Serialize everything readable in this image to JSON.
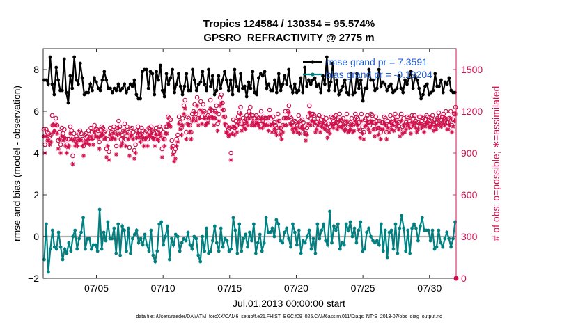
{
  "chart_data": {
    "type": "line",
    "title": "Tropics 124584 / 130354 = 95.574%",
    "subtitle": "GPSRO_REFRACTIVITY @ 2775 m",
    "xlabel": "Jul.01,2013 00:00:00 start",
    "ylabel_left": "rmse and bias (model - observation)",
    "ylabel_right": "# of obs: o=possible; ∗=assimilated",
    "footer": "data file: /Users/raeder/DAI/ATM_forcXX/CAM6_setup/f.e21.FHIST_BGC.f09_025.CAM6assim.011/Diags_NTrS_2013-07/obs_diag_output.nc",
    "xlim": [
      1,
      32
    ],
    "ylim_left": [
      -2,
      9
    ],
    "ylim_right": [
      0,
      1650
    ],
    "xticks": [
      5,
      10,
      15,
      20,
      25,
      30
    ],
    "xticklabels": [
      "07/05",
      "07/10",
      "07/15",
      "07/20",
      "07/25",
      "07/30"
    ],
    "yticks_left": [
      -2,
      0,
      2,
      4,
      6,
      8
    ],
    "yticks_right": [
      0,
      300,
      600,
      900,
      1200,
      1500
    ],
    "grid": false,
    "legend_position": "top-right",
    "colors": {
      "rmse": "#000000",
      "bias": "#008080",
      "obs": "#d0104c",
      "zero_line": "#b0b0b0"
    },
    "series": [
      {
        "name": "rmse grand pr = 7.3591",
        "axis": "left",
        "marker": "dot",
        "values": [
          7.5,
          7.5,
          7.3,
          8.6,
          7.3,
          6.8,
          8.1,
          7.5,
          7.0,
          7.0,
          8.5,
          6.9,
          6.4,
          7.7,
          7.1,
          8.6,
          7.5,
          7.3,
          8.3,
          7.6,
          6.8,
          6.9,
          6.9,
          7.3,
          7.0,
          7.6,
          7.4,
          7.1,
          7.0,
          7.5,
          7.9,
          7.5,
          7.1,
          7.1,
          6.9,
          7.1,
          7.0,
          7.3,
          7.0,
          7.1,
          7.3,
          6.9,
          7.1,
          7.3,
          7.2,
          7.5,
          6.8,
          6.6,
          6.6,
          7.9,
          8.0,
          8.0,
          7.1,
          7.9,
          7.8,
          6.8,
          7.9,
          7.5,
          8.2,
          7.0,
          6.7,
          7.8,
          7.3,
          7.6,
          8.0,
          6.9,
          7.3,
          7.8,
          7.2,
          6.8,
          7.2,
          7.8,
          7.0,
          7.0,
          8.0,
          7.5,
          7.0,
          7.3,
          7.4,
          7.9,
          7.3,
          7.0,
          8.0,
          7.2,
          7.7,
          6.8,
          7.0,
          7.7,
          7.1,
          7.5,
          7.9,
          7.5,
          7.0,
          7.5,
          6.8,
          8.0,
          7.2,
          7.0,
          7.8,
          7.1,
          7.2,
          6.7,
          7.4,
          7.1,
          7.9,
          6.9,
          6.8,
          7.6,
          7.8,
          7.7,
          7.9,
          7.1,
          7.3,
          7.0,
          7.0,
          7.5,
          6.9,
          7.8,
          7.0,
          7.3,
          7.7,
          7.3,
          8.0,
          7.2,
          6.9,
          7.3,
          6.9,
          7.0,
          7.6,
          6.9,
          8.1,
          7.2,
          7.5,
          7.3,
          7.5,
          7.6,
          7.2,
          7.3,
          6.9,
          7.7,
          7.3,
          8.6,
          7.0,
          7.4,
          8.3,
          7.0,
          7.5,
          6.8,
          7.0,
          7.2,
          7.5,
          6.9,
          6.8,
          7.8,
          6.8,
          6.9,
          7.8,
          7.1,
          7.5,
          6.5,
          7.1,
          7.1,
          8.0,
          7.5,
          7.5,
          7.0,
          7.1,
          8.0,
          7.2,
          7.4,
          7.3,
          7.0,
          7.2,
          7.3,
          6.9,
          7.0,
          7.1,
          7.7,
          7.1,
          6.9,
          7.5,
          7.3,
          7.6,
          7.9,
          7.1,
          7.7,
          7.5,
          7.1,
          6.6,
          6.8,
          7.2,
          7.3,
          6.8,
          6.9,
          7.0,
          7.8,
          7.2,
          7.2,
          7.5,
          6.9,
          7.4,
          7.3,
          7.6,
          7.0,
          6.9,
          6.9
        ]
      },
      {
        "name": "bias grand pr = -0.19204",
        "axis": "left",
        "marker": "dot",
        "values": [
          -1.1,
          0.6,
          -1.7,
          -0.6,
          0.3,
          -0.5,
          -0.6,
          0.2,
          -0.5,
          -1.1,
          -0.6,
          -0.8,
          -0.3,
          -0.7,
          0.0,
          0.3,
          -0.6,
          -0.1,
          0.2,
          0.9,
          -0.6,
          -0.1,
          -0.1,
          -0.6,
          -0.4,
          -0.4,
          -0.7,
          1.3,
          -0.6,
          0.2,
          -0.2,
          0.7,
          -0.1,
          -0.1,
          0.4,
          -0.8,
          0.6,
          -0.9,
          0.5,
          0.3,
          -0.7,
          0.4,
          -0.8,
          -0.1,
          0.1,
          0.3,
          -0.3,
          -0.1,
          -0.4,
          0.1,
          -0.4,
          -0.7,
          0.3,
          -0.9,
          -1.2,
          -0.7,
          0.6,
          0.7,
          -0.4,
          0.0,
          0.5,
          -1.1,
          -0.1,
          -0.4,
          0.1,
          0.0,
          -0.7,
          -0.3,
          -0.1,
          -0.2,
          0.2,
          -0.4,
          -0.6,
          0.0,
          -0.1,
          -0.9,
          -1.2,
          0.0,
          -0.7,
          0.4,
          -0.8,
          -0.7,
          -0.2,
          0.5,
          -0.3,
          -0.7,
          0.4,
          -0.5,
          -0.1,
          -0.2,
          -0.7,
          -0.6,
          0.9,
          0.3,
          -0.8,
          0.6,
          -0.7,
          -0.1,
          0.1,
          -0.5,
          0.2,
          -0.2,
          0.6,
          -0.8,
          -0.3,
          0.1,
          -0.7,
          -0.3,
          0.9,
          0.2,
          0.2,
          0.4,
          0.0,
          0.8,
          0.6,
          -0.2,
          -0.3,
          0.2,
          0.4,
          -0.1,
          -0.5,
          0.6,
          0.2,
          -0.4,
          0.3,
          -0.8,
          -0.2,
          -0.3,
          0.0,
          0.3,
          -0.6,
          -0.1,
          -0.8,
          0.6,
          -0.1,
          0.3,
          0.6,
          -0.2,
          -0.4,
          1.2,
          -0.3,
          0.5,
          0.3,
          0.6,
          -0.6,
          -0.3,
          -0.4,
          0.6,
          0.3,
          0.7,
          0.0,
          0.4,
          -0.3,
          0.3,
          0.7,
          -0.7,
          -0.6,
          0.2,
          0.4,
          0.0,
          -0.2,
          -0.3,
          -0.2,
          -0.4,
          0.6,
          -0.7,
          0.3,
          -1.0,
          0.2,
          0.3,
          -0.6,
          0.6,
          -0.8,
          0.4,
          1.0,
          0.4,
          -0.7,
          0.3,
          -0.8,
          0.4,
          0.6,
          0.4,
          -0.2,
          0.5,
          0.9,
          0.3,
          0.3,
          0.3,
          -0.2,
          0.3,
          -0.6,
          -0.5,
          0.3,
          -0.3,
          -0.5,
          -0.1,
          0.2,
          -0.1,
          -0.5,
          -0.1,
          0.7
        ]
      },
      {
        "name": "obs possible",
        "axis": "right",
        "marker": "circle",
        "values": [
          1070,
          960,
          1070,
          1050,
          1040,
          1020,
          1030,
          1170,
          1100,
          1110,
          1150,
          1100,
          990,
          1050,
          960,
          1080,
          1040,
          1070,
          1000,
          960,
          1000,
          1000,
          1090,
          1060,
          880,
          1040,
          1000,
          1020,
          1000,
          1050,
          1060,
          1040,
          1000,
          950,
          1030,
          1040,
          1020,
          1060,
          1010,
          1080,
          1050,
          1010,
          1100,
          1070,
          1070,
          1060,
          980,
          1070,
          1090,
          1080,
          1050,
          1060,
          930,
          1000,
          910,
          1080,
          1050,
          1060,
          1090,
          1050,
          950,
          1080,
          1130,
          1090,
          1000,
          1030,
          1060,
          1110,
          1000,
          1090,
          1050,
          940,
          1070,
          1080,
          1050,
          920,
          960,
          1060,
          1090,
          1060,
          1030,
          1080,
          1060,
          1000,
          1050,
          1060,
          1000,
          1080,
          1070,
          1090,
          1060,
          1050,
          1000,
          1080,
          1050,
          1040,
          1090,
          1070,
          930,
          1050,
          1000,
          1090,
          1090,
          1160,
          1150,
          1140,
          990,
          950,
          910,
          930,
          1000,
          1030,
          1160,
          1120,
          1080,
          1150,
          1240,
          1280,
          1050,
          1160,
          1150,
          1100,
          1050,
          1180,
          1200,
          1250,
          1180,
          1300,
          1150,
          1200,
          1270,
          1160,
          1250,
          1200,
          1150,
          1160,
          1170,
          1200,
          1280,
          1210,
          1200,
          1150,
          1200,
          1240,
          1110,
          1180,
          1300,
          1320,
          1260,
          1210,
          1160,
          1100,
          1090,
          1070,
          1080,
          900,
          1090,
          1140,
          1080,
          1130,
          1100,
          1160,
          1190,
          1230,
          1110,
          1150,
          1130,
          1120,
          1170,
          1150,
          1200,
          1230,
          1150,
          1170,
          1150,
          1150,
          1170,
          1160,
          1150,
          1130,
          1200,
          1130,
          1160,
          1150,
          1150,
          1150,
          1110,
          1210,
          1150,
          1100,
          1160,
          1120,
          1100,
          1080,
          1180,
          1130,
          1080,
          1050,
          1100,
          1150,
          1200,
          1150,
          1200,
          1240,
          1160,
          1150,
          1120,
          1100,
          1130,
          1120,
          1100,
          1170,
          1090,
          1130,
          1140,
          1120,
          1090,
          1040,
          1080,
          1160,
          1240,
          1150,
          1180,
          1180,
          1170,
          1100,
          1120,
          1150,
          1170,
          1100,
          1140,
          1160,
          1130,
          1120,
          1150,
          1060,
          1110,
          1090,
          1160,
          1150,
          1130,
          1160,
          1170,
          1120,
          1140,
          1180,
          1140,
          1130,
          1150,
          1110,
          1120,
          1180,
          1100,
          1110,
          1120,
          1150,
          1100,
          1110,
          1180,
          1160,
          1150,
          1120,
          1060,
          1180,
          1090,
          1050,
          1140,
          1150,
          1170,
          1120,
          1100,
          1180,
          1170,
          1120,
          1070,
          1160,
          1130,
          1080,
          1130,
          1050,
          1120,
          1120,
          1160,
          1150,
          1050,
          1130,
          1100,
          1170,
          1120,
          1150,
          1110,
          1180,
          1140,
          1160,
          1120,
          1070,
          1180,
          1090,
          1150,
          1100,
          1120,
          1160,
          1150,
          1130,
          1090,
          1170,
          1150,
          1170,
          1130,
          1100,
          1120,
          1160,
          1160,
          1130,
          1150,
          1100,
          1140,
          1170,
          1160,
          1140,
          1130,
          1150,
          1170,
          1110,
          1140,
          1120,
          1150,
          1190,
          1160,
          1140,
          1160,
          1180,
          1150,
          1200,
          1120,
          1120,
          1150,
          1200,
          1100,
          1140,
          1180,
          1230
        ]
      },
      {
        "name": "obs assimilated",
        "axis": "right",
        "marker": "asterisk",
        "values": [
          1020,
          900,
          1020,
          990,
          990,
          960,
          980,
          1100,
          1050,
          1060,
          1100,
          1040,
          930,
          1000,
          900,
          1020,
          990,
          1010,
          950,
          900,
          940,
          950,
          1040,
          1000,
          820,
          990,
          950,
          970,
          950,
          990,
          1000,
          990,
          950,
          880,
          970,
          990,
          970,
          1000,
          960,
          1020,
          1000,
          960,
          1050,
          1020,
          1020,
          1010,
          930,
          1020,
          1040,
          1030,
          1000,
          1010,
          870,
          950,
          850,
          1030,
          1000,
          1010,
          1040,
          1000,
          890,
          1030,
          1080,
          1040,
          950,
          970,
          1010,
          1060,
          950,
          1040,
          1000,
          880,
          1020,
          1030,
          1000,
          860,
          900,
          1010,
          1040,
          1010,
          980,
          1030,
          1010,
          950,
          1000,
          1010,
          950,
          1030,
          1020,
          1040,
          1010,
          1000,
          950,
          1030,
          1000,
          990,
          1040,
          1020,
          870,
          1000,
          950,
          1040,
          1040,
          1110,
          1100,
          1090,
          940,
          890,
          840,
          860,
          950,
          980,
          1110,
          1070,
          1030,
          1100,
          1180,
          1220,
          1000,
          1110,
          1100,
          1050,
          1000,
          1130,
          1150,
          1190,
          1130,
          1240,
          1100,
          1150,
          1210,
          1110,
          1190,
          1150,
          1100,
          1110,
          1120,
          1150,
          1220,
          1160,
          1150,
          1100,
          1150,
          1190,
          1060,
          1130,
          1240,
          1260,
          1210,
          1160,
          1110,
          1050,
          1040,
          1020,
          1030,
          850,
          1040,
          1090,
          1030,
          1080,
          1050,
          1110,
          1140,
          1180,
          1060,
          1100,
          1080,
          1070,
          1120,
          1100,
          1150,
          1180,
          1100,
          1120,
          1100,
          1100,
          1120,
          1110,
          1100,
          1080,
          1150,
          1080,
          1110,
          1100,
          1100,
          1100,
          1060,
          1160,
          1100,
          1050,
          1110,
          1070,
          1050,
          1030,
          1130,
          1080,
          1030,
          1000,
          1050,
          1100,
          1150,
          1100,
          1150,
          1190,
          1110,
          1100,
          1070,
          1050,
          1080,
          1070,
          1050,
          1120,
          1040,
          1080,
          1090,
          1070,
          1040,
          990,
          1030,
          1110,
          1190,
          1100,
          1130,
          1130,
          1120,
          1050,
          1070,
          1100,
          1120,
          1050,
          1090,
          1110,
          1080,
          1070,
          1100,
          1010,
          1060,
          1040,
          1110,
          1100,
          1080,
          1110,
          1120,
          1070,
          1090,
          1130,
          1090,
          1080,
          1100,
          1060,
          1070,
          1130,
          1050,
          1060,
          1070,
          1100,
          1050,
          1060,
          1130,
          1110,
          1100,
          1070,
          1010,
          1130,
          1040,
          1000,
          1090,
          1100,
          1120,
          1070,
          1050,
          1130,
          1120,
          1070,
          1020,
          1110,
          1080,
          1030,
          1080,
          1000,
          1070,
          1070,
          1110,
          1100,
          1000,
          1080,
          1050,
          1120,
          1070,
          1100,
          1060,
          1130,
          1090,
          1110,
          1070,
          1020,
          1130,
          1040,
          1100,
          1050,
          1070,
          1110,
          1100,
          1080,
          1040,
          1120,
          1100,
          1120,
          1080,
          1050,
          1070,
          1110,
          1110,
          1080,
          1100,
          1050,
          1090,
          1120,
          1110,
          1090,
          1080,
          1100,
          1120,
          1060,
          1090,
          1070,
          1100,
          1140,
          1110,
          1090,
          1110,
          1130,
          1100,
          1150,
          1070,
          1070,
          1100,
          1150,
          1050,
          1090,
          1130,
          1180
        ]
      }
    ]
  }
}
